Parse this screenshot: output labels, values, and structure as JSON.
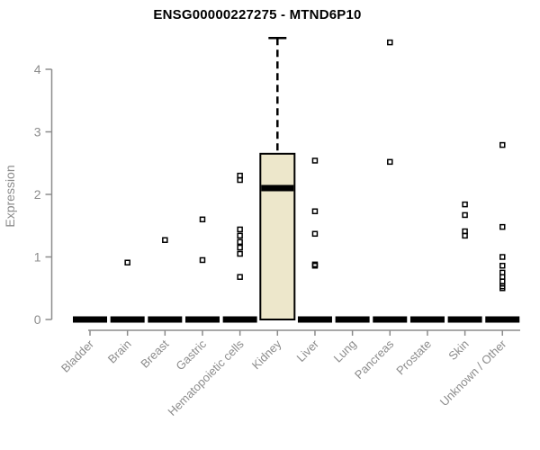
{
  "chart_data": {
    "type": "boxplot",
    "title": "ENSG00000227275 - MTND6P10",
    "ylabel": "Expression",
    "xlabel": "",
    "yticks": [
      "0",
      "1",
      "2",
      "3",
      "4"
    ],
    "ylim": [
      0,
      4.6
    ],
    "grid": false,
    "legend": "none",
    "categories": [
      "Bladder",
      "Brain",
      "Breast",
      "Gastric",
      "Hematopoietic cells",
      "Kidney",
      "Liver",
      "Lung",
      "Pancreas",
      "Prostate",
      "Skin",
      "Unknown / Other"
    ],
    "boxes": [
      {
        "category": "Bladder",
        "q1": 0,
        "median": 0,
        "q3": 0,
        "whisker_low": 0,
        "whisker_high": 0,
        "collapsed": true,
        "outliers": []
      },
      {
        "category": "Brain",
        "q1": 0,
        "median": 0,
        "q3": 0,
        "whisker_low": 0,
        "whisker_high": 0,
        "collapsed": true,
        "outliers": [
          0.91
        ]
      },
      {
        "category": "Breast",
        "q1": 0,
        "median": 0,
        "q3": 0,
        "whisker_low": 0,
        "whisker_high": 0,
        "collapsed": true,
        "outliers": [
          1.27
        ]
      },
      {
        "category": "Gastric",
        "q1": 0,
        "median": 0,
        "q3": 0,
        "whisker_low": 0,
        "whisker_high": 0,
        "collapsed": true,
        "outliers": [
          1.6,
          0.95
        ]
      },
      {
        "category": "Hematopoietic cells",
        "q1": 0,
        "median": 0,
        "q3": 0,
        "whisker_low": 0,
        "whisker_high": 0,
        "collapsed": true,
        "outliers": [
          2.3,
          2.23,
          1.44,
          1.34,
          1.24,
          1.15,
          1.05,
          0.68
        ]
      },
      {
        "category": "Kidney",
        "q1": 0,
        "median": 2.1,
        "q3": 2.65,
        "whisker_low": 0,
        "whisker_high": 4.5,
        "collapsed": false,
        "outliers": []
      },
      {
        "category": "Liver",
        "q1": 0,
        "median": 0,
        "q3": 0,
        "whisker_low": 0,
        "whisker_high": 0,
        "collapsed": true,
        "outliers": [
          2.54,
          1.73,
          1.37,
          0.88,
          0.86
        ]
      },
      {
        "category": "Lung",
        "q1": 0,
        "median": 0,
        "q3": 0,
        "whisker_low": 0,
        "whisker_high": 0,
        "collapsed": true,
        "outliers": []
      },
      {
        "category": "Pancreas",
        "q1": 0,
        "median": 0,
        "q3": 0,
        "whisker_low": 0,
        "whisker_high": 0,
        "collapsed": true,
        "outliers": [
          4.43,
          2.52
        ]
      },
      {
        "category": "Prostate",
        "q1": 0,
        "median": 0,
        "q3": 0,
        "whisker_low": 0,
        "whisker_high": 0,
        "collapsed": true,
        "outliers": []
      },
      {
        "category": "Skin",
        "q1": 0,
        "median": 0,
        "q3": 0,
        "whisker_low": 0,
        "whisker_high": 0,
        "collapsed": true,
        "outliers": [
          1.84,
          1.67,
          1.41,
          1.34
        ]
      },
      {
        "category": "Unknown / Other",
        "q1": 0,
        "median": 0,
        "q3": 0,
        "whisker_low": 0,
        "whisker_high": 0,
        "collapsed": true,
        "outliers": [
          2.79,
          1.48,
          1.0,
          0.86,
          0.75,
          0.68,
          0.61,
          0.53,
          0.5
        ]
      }
    ],
    "style": {
      "box_fill": "#EDE7CB",
      "box_stroke": "#000000",
      "median_color": "#000000",
      "outlier_color": "#000000",
      "outlier_marker": "open-square",
      "axis_color": "#8C8C8C",
      "tick_label_color": "#8C8C8C",
      "title_color": "#000000",
      "background": "#FFFFFF"
    }
  }
}
